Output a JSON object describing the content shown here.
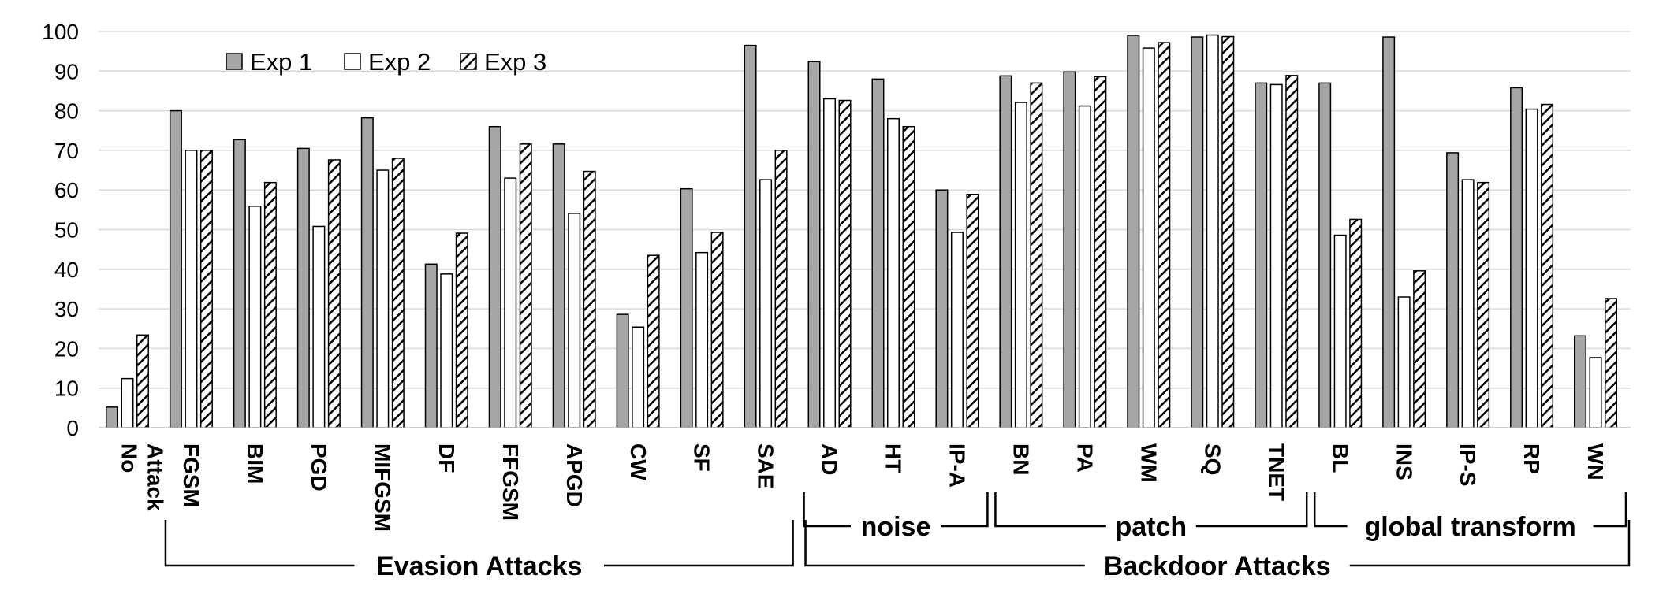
{
  "chart_data": {
    "type": "bar",
    "title": "",
    "xlabel": "",
    "ylabel": "",
    "ylim": [
      0,
      100
    ],
    "yticks": [
      0,
      10,
      20,
      30,
      40,
      50,
      60,
      70,
      80,
      90,
      100
    ],
    "grid": true,
    "legend": "top-left",
    "categories": [
      "No Attack",
      "FGSM",
      "BIM",
      "PGD",
      "MIFGSM",
      "DF",
      "FFGSM",
      "APGD",
      "CW",
      "SF",
      "SAE",
      "AD",
      "HT",
      "IP-A",
      "BN",
      "PA",
      "WM",
      "SQ",
      "TNET",
      "BL",
      "INS",
      "IP-S",
      "RP",
      "WN"
    ],
    "series": [
      {
        "name": "Exp 1",
        "fill": "#a6a6a6",
        "pattern": "solid",
        "values": [
          5.2,
          80,
          72.7,
          70.5,
          78.2,
          41.3,
          76,
          71.6,
          28.6,
          60.3,
          96.5,
          92.4,
          88,
          60,
          88.8,
          89.8,
          99,
          98.6,
          87,
          87,
          98.6,
          69.4,
          85.8,
          23.2
        ]
      },
      {
        "name": "Exp 2",
        "fill": "#ffffff",
        "pattern": "solid",
        "values": [
          12.4,
          70,
          55.9,
          50.8,
          65,
          38.8,
          63,
          54.1,
          25.4,
          44.2,
          62.6,
          83,
          78,
          49.3,
          82.1,
          81.2,
          95.8,
          99.1,
          86.6,
          48.6,
          33,
          62.6,
          80.4,
          17.7
        ]
      },
      {
        "name": "Exp 3",
        "fill": "#ffffff",
        "pattern": "hatch",
        "values": [
          23.4,
          70,
          61.9,
          67.6,
          68,
          49.1,
          71.6,
          64.7,
          43.5,
          49.3,
          70,
          82.6,
          76,
          58.9,
          87,
          88.6,
          97.2,
          98.7,
          88.9,
          52.6,
          39.6,
          61.9,
          81.6,
          32.6
        ]
      }
    ],
    "groups": [
      {
        "label": "Evasion Attacks",
        "start": 1,
        "end": 10,
        "level": 2
      },
      {
        "label": "noise",
        "start": 11,
        "end": 13,
        "level": 1
      },
      {
        "label": "patch",
        "start": 14,
        "end": 18,
        "level": 1
      },
      {
        "label": "global transform",
        "start": 19,
        "end": 23,
        "level": 1
      },
      {
        "label": "Backdoor Attacks",
        "start": 11,
        "end": 23,
        "level": 2
      }
    ]
  }
}
